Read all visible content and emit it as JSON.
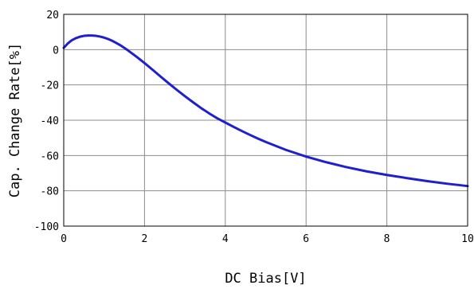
{
  "chart_data": {
    "type": "line",
    "title": "",
    "xlabel": "DC Bias[V]",
    "ylabel": "Cap. Change Rate[%]",
    "xlim": [
      0,
      10
    ],
    "ylim": [
      -100,
      20
    ],
    "x_ticks": [
      0,
      2,
      4,
      6,
      8,
      10
    ],
    "y_ticks": [
      20,
      0,
      -20,
      -40,
      -60,
      -80,
      -100
    ],
    "grid": true,
    "line_color": "#1f1fd0",
    "series": [
      {
        "x": [
          0,
          0.1,
          0.2,
          0.3,
          0.4,
          0.5,
          0.6,
          0.7,
          0.8,
          0.9,
          1.0,
          1.1,
          1.2,
          1.3,
          1.4,
          1.5,
          1.6,
          1.7,
          1.8,
          1.9,
          2.0,
          2.2,
          2.4,
          2.6,
          2.8,
          3.0,
          3.2,
          3.4,
          3.6,
          3.8,
          4.0,
          4.2,
          4.4,
          4.6,
          4.8,
          5.0,
          5.5,
          6.0,
          6.5,
          7.0,
          7.5,
          8.0,
          8.5,
          9.0,
          9.5,
          10.0
        ],
        "y": [
          1.0,
          3.5,
          5.3,
          6.5,
          7.3,
          7.8,
          8.0,
          8.0,
          7.8,
          7.4,
          6.8,
          6.0,
          5.0,
          3.8,
          2.5,
          1.0,
          -0.6,
          -2.3,
          -4.0,
          -5.8,
          -7.6,
          -11.4,
          -15.3,
          -19.1,
          -22.8,
          -26.4,
          -29.8,
          -33.1,
          -36.1,
          -38.9,
          -41.3,
          -43.7,
          -46.0,
          -48.2,
          -50.3,
          -52.3,
          -56.8,
          -60.6,
          -63.8,
          -66.6,
          -69.0,
          -71.0,
          -72.8,
          -74.5,
          -76.0,
          -77.3
        ]
      }
    ]
  }
}
